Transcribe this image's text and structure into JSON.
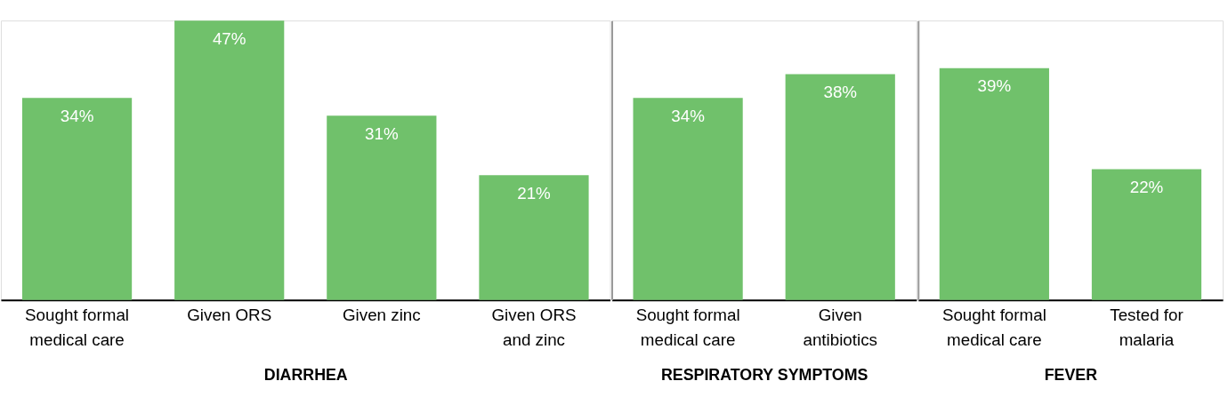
{
  "chart_data": [
    {
      "type": "bar",
      "xlabel": "DIARRHEA",
      "categories": [
        "Sought formal\nmedical care",
        "Given ORS",
        "Given zinc",
        "Given ORS\nand zinc"
      ],
      "values": [
        34,
        47,
        31,
        21
      ],
      "value_labels": [
        "34%",
        "47%",
        "31%",
        "21%"
      ],
      "color": "#70c16b",
      "tick_labels": "x",
      "grid": false
    },
    {
      "type": "bar",
      "xlabel": "RESPIRATORY SYMPTOMS",
      "categories": [
        "Sought formal\nmedical care",
        "Given\nantibiotics"
      ],
      "values": [
        34,
        38
      ],
      "value_labels": [
        "34%",
        "38%"
      ],
      "color": "#70c16b",
      "tick_labels": "x",
      "grid": false
    },
    {
      "type": "bar",
      "xlabel": "FEVER",
      "categories": [
        "Sought formal\nmedical care",
        "Tested for\nmalaria"
      ],
      "values": [
        39,
        22
      ],
      "value_labels": [
        "39%",
        "22%"
      ],
      "color": "#70c16b",
      "tick_labels": "x",
      "grid": false
    }
  ]
}
